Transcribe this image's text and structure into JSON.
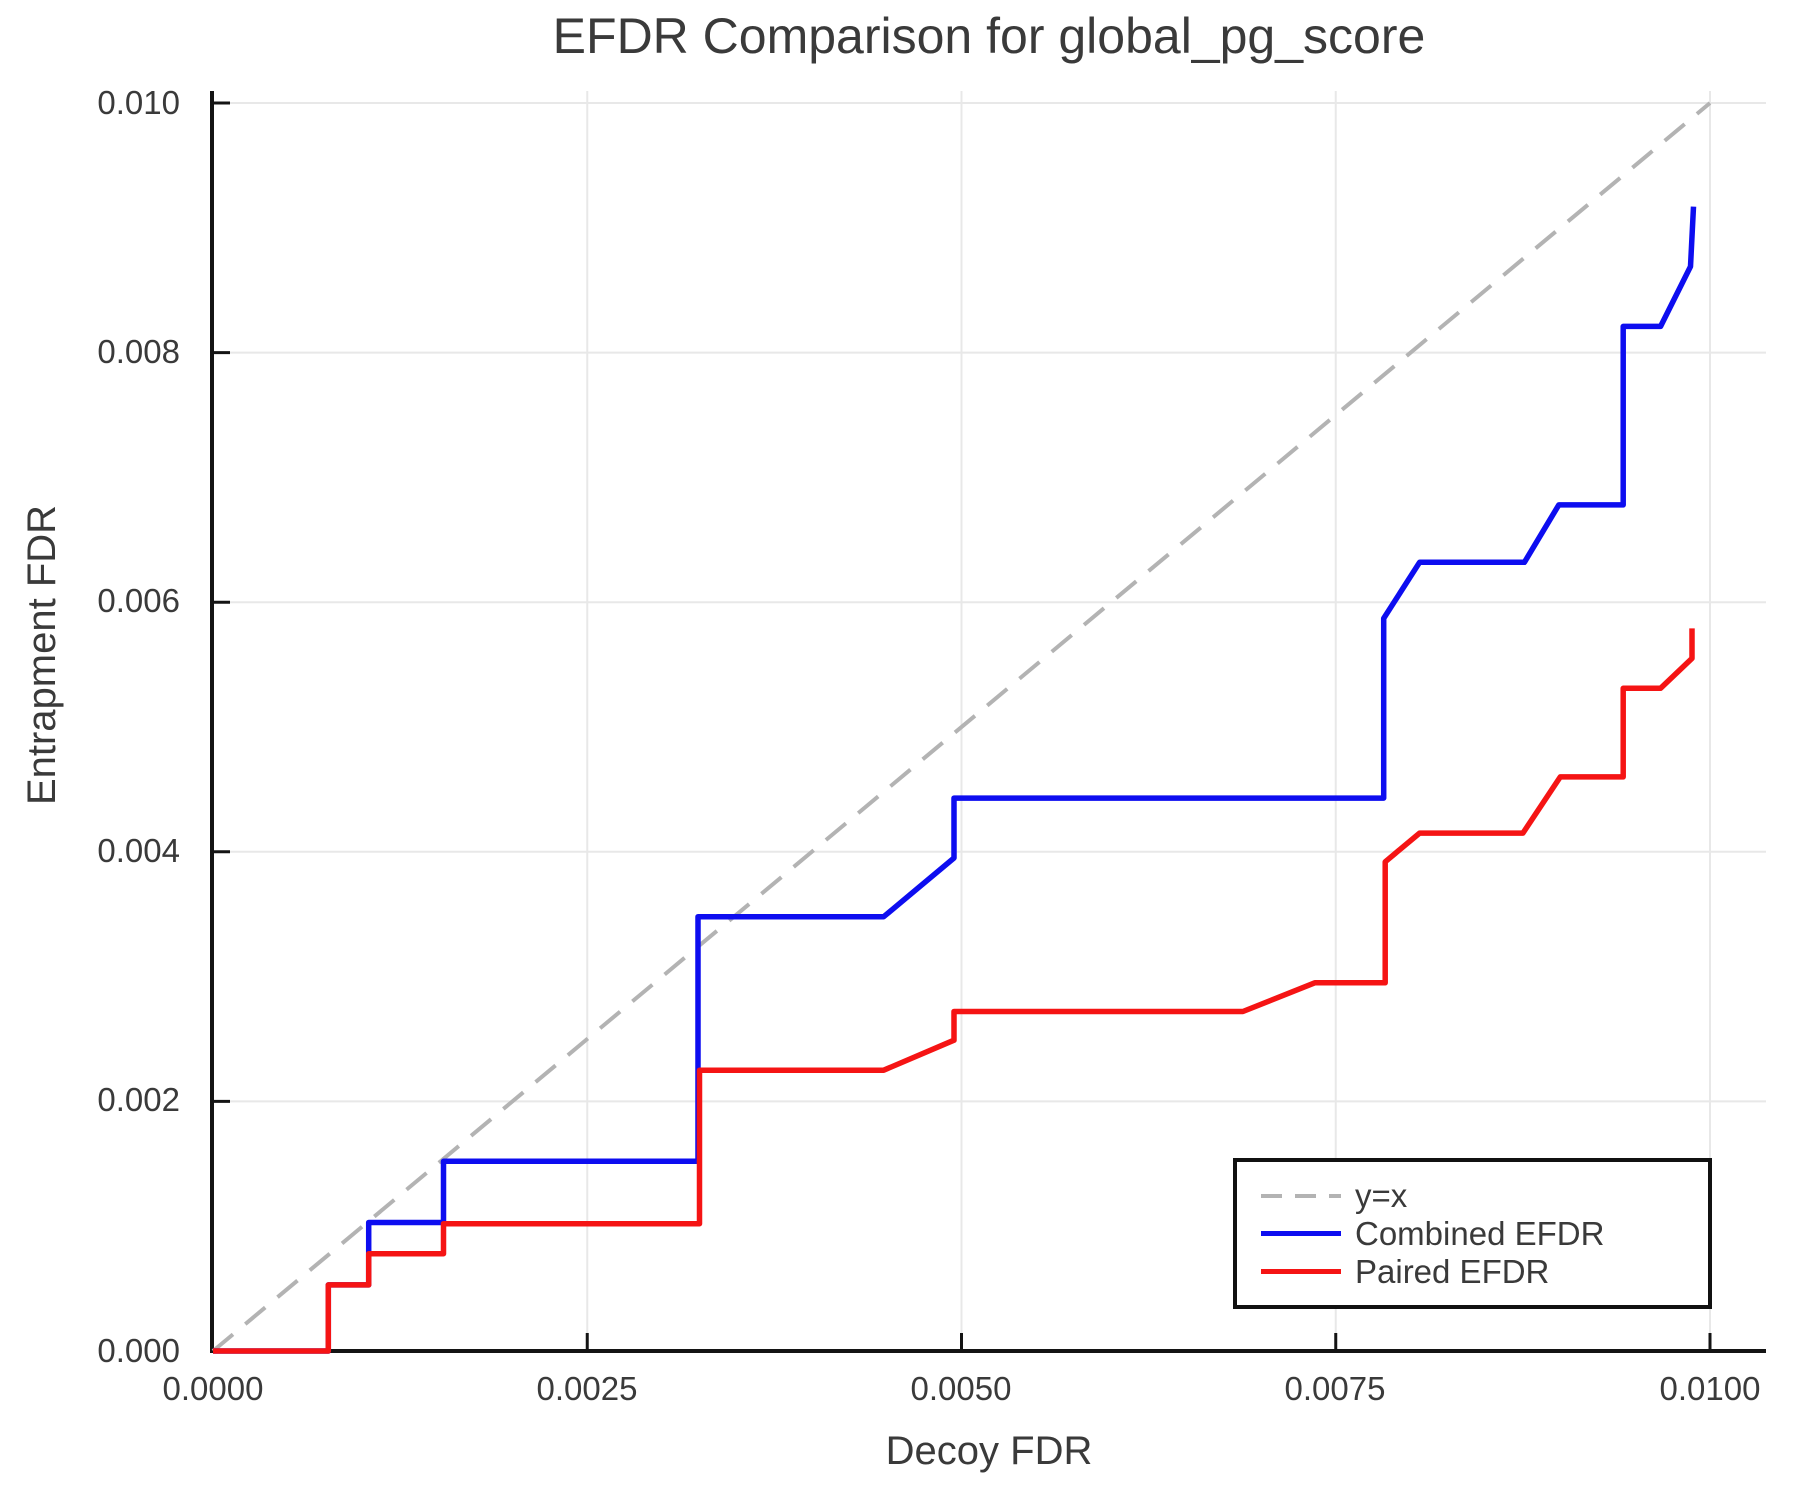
{
  "title": "EFDR Comparison for global_pg_score",
  "axes": {
    "x_label": "Decoy FDR",
    "y_label": "Entrapment FDR"
  },
  "legend": {
    "items": [
      {
        "label": "y=x",
        "style": "dashed",
        "color": "#b3b3b3"
      },
      {
        "label": "Combined EFDR",
        "style": "solid",
        "color": "#0d0df0"
      },
      {
        "label": "Paired EFDR",
        "style": "solid",
        "color": "#f51414"
      }
    ]
  },
  "colors": {
    "grid": "#e8e8e8",
    "spine": "#141414",
    "text": "#3a3a3a",
    "identity": "#b3b3b3",
    "combined": "#0d0df0",
    "paired": "#f51414",
    "background": "#ffffff"
  },
  "chart_data": {
    "type": "line",
    "title": "EFDR Comparison for global_pg_score",
    "xlabel": "Decoy FDR",
    "ylabel": "Entrapment FDR",
    "xlim": [
      0,
      0.010381
    ],
    "ylim": [
      0,
      0.010096
    ],
    "grid": true,
    "legend_position": "lower right",
    "x_ticks": [
      0,
      0.0025,
      0.005,
      0.0075,
      0.01
    ],
    "x_tick_labels": [
      "0.0000",
      "0.0025",
      "0.0050",
      "0.0075",
      "0.0100"
    ],
    "y_ticks": [
      0,
      0.002,
      0.004,
      0.006,
      0.008,
      0.01
    ],
    "y_tick_labels": [
      "0.000",
      "0.002",
      "0.004",
      "0.006",
      "0.008",
      "0.010"
    ],
    "identity_line": {
      "label": "y=x",
      "from": [
        0,
        0
      ],
      "to": [
        0.01,
        0.01
      ],
      "color": "#b3b3b3"
    },
    "series": [
      {
        "name": "Combined EFDR",
        "color": "#0d0df0",
        "points": [
          [
            0.0,
            0.0
          ],
          [
            0.00077,
            0.0
          ],
          [
            0.00077,
            0.00053
          ],
          [
            0.00104,
            0.00053
          ],
          [
            0.00104,
            0.00103
          ],
          [
            0.00154,
            0.00103
          ],
          [
            0.00154,
            0.00152
          ],
          [
            0.00324,
            0.00152
          ],
          [
            0.00324,
            0.00348
          ],
          [
            0.00448,
            0.00348
          ],
          [
            0.00495,
            0.00395
          ],
          [
            0.00495,
            0.00443
          ],
          [
            0.00782,
            0.00443
          ],
          [
            0.00782,
            0.00587
          ],
          [
            0.00806,
            0.00632
          ],
          [
            0.00876,
            0.00632
          ],
          [
            0.00899,
            0.00678
          ],
          [
            0.00942,
            0.00678
          ],
          [
            0.00942,
            0.00821
          ],
          [
            0.00967,
            0.00821
          ],
          [
            0.00987,
            0.00869
          ],
          [
            0.00989,
            0.00917
          ]
        ]
      },
      {
        "name": "Paired EFDR",
        "color": "#f51414",
        "points": [
          [
            0.0,
            0.0
          ],
          [
            0.00077,
            0.0
          ],
          [
            0.00077,
            0.00053
          ],
          [
            0.00104,
            0.00053
          ],
          [
            0.00104,
            0.00078
          ],
          [
            0.00154,
            0.00078
          ],
          [
            0.00154,
            0.00102
          ],
          [
            0.00325,
            0.00102
          ],
          [
            0.00325,
            0.00225
          ],
          [
            0.00448,
            0.00225
          ],
          [
            0.00495,
            0.00249
          ],
          [
            0.00495,
            0.00272
          ],
          [
            0.00688,
            0.00272
          ],
          [
            0.00736,
            0.00295
          ],
          [
            0.00783,
            0.00295
          ],
          [
            0.00783,
            0.00392
          ],
          [
            0.00806,
            0.00415
          ],
          [
            0.00875,
            0.00415
          ],
          [
            0.009,
            0.0046
          ],
          [
            0.00942,
            0.0046
          ],
          [
            0.00942,
            0.00531
          ],
          [
            0.00967,
            0.00531
          ],
          [
            0.00988,
            0.00555
          ],
          [
            0.00988,
            0.00579
          ]
        ]
      }
    ]
  }
}
